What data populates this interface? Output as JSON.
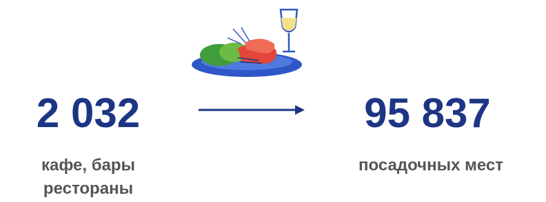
{
  "stats": [
    {
      "number": "2 032",
      "label_lines": [
        "кафе, бары",
        "рестораны"
      ]
    },
    {
      "number": "95 837",
      "label_lines": [
        "посадочных мест"
      ]
    }
  ]
}
